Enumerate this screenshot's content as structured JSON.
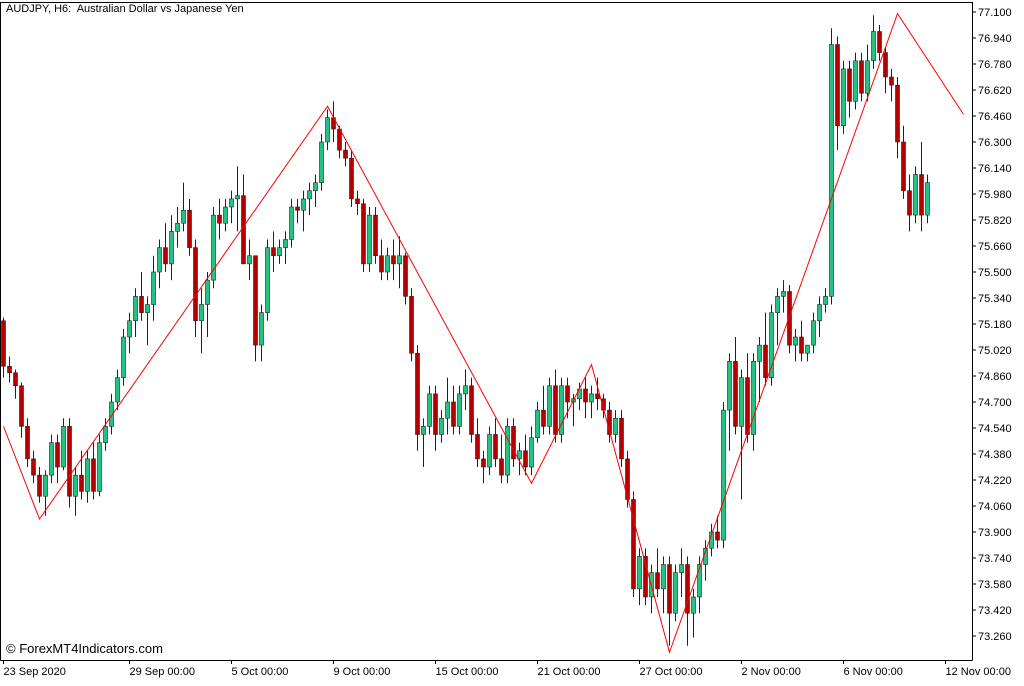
{
  "chart_title": "AUDJPY, H6:  Australian Dollar vs Japanese Yen",
  "watermark": "© ForexMT4Indicators.com",
  "colors": {
    "background": "#ffffff",
    "bull": "#26c281",
    "bear": "#b50000",
    "wick": "#222222",
    "zigzag": "#ff0000",
    "axis": "#000000"
  },
  "chart_data": {
    "type": "candlestick",
    "instrument": "AUDJPY",
    "timeframe": "H6",
    "y_tick_labels": [
      "77.100",
      "76.940",
      "76.780",
      "76.620",
      "76.460",
      "76.300",
      "76.140",
      "75.980",
      "75.820",
      "75.660",
      "75.500",
      "75.340",
      "75.180",
      "75.020",
      "74.860",
      "74.700",
      "74.540",
      "74.380",
      "74.220",
      "74.060",
      "73.900",
      "73.740",
      "73.580",
      "73.420",
      "73.260"
    ],
    "ylim": [
      73.12,
      77.18
    ],
    "x_tick_labels": [
      {
        "index": 0,
        "label": "23 Sep 2020"
      },
      {
        "index": 21,
        "label": "29 Sep 00:00"
      },
      {
        "index": 38,
        "label": "5 Oct 00:00"
      },
      {
        "index": 55,
        "label": "9 Oct 00:00"
      },
      {
        "index": 72,
        "label": "15 Oct 00:00"
      },
      {
        "index": 89,
        "label": "21 Oct 00:00"
      },
      {
        "index": 106,
        "label": "27 Oct 00:00"
      },
      {
        "index": 123,
        "label": "2 Nov 00:00"
      },
      {
        "index": 140,
        "label": "6 Nov 00:00"
      },
      {
        "index": 157,
        "label": "12 Nov 00:00"
      }
    ],
    "candles_ohlc": [
      [
        75.2,
        75.22,
        74.85,
        74.92
      ],
      [
        74.92,
        74.98,
        74.82,
        74.88
      ],
      [
        74.88,
        74.9,
        74.72,
        74.8
      ],
      [
        74.8,
        74.82,
        74.48,
        74.55
      ],
      [
        74.55,
        74.6,
        74.3,
        74.35
      ],
      [
        74.35,
        74.4,
        74.2,
        74.25
      ],
      [
        74.25,
        74.3,
        74.08,
        74.12
      ],
      [
        74.12,
        74.28,
        74.0,
        74.25
      ],
      [
        74.25,
        74.5,
        74.2,
        74.45
      ],
      [
        74.45,
        74.5,
        74.2,
        74.3
      ],
      [
        74.3,
        74.6,
        74.28,
        74.55
      ],
      [
        74.55,
        74.6,
        74.05,
        74.12
      ],
      [
        74.12,
        74.3,
        74.0,
        74.25
      ],
      [
        74.25,
        74.4,
        74.1,
        74.15
      ],
      [
        74.15,
        74.4,
        74.08,
        74.35
      ],
      [
        74.35,
        74.45,
        74.1,
        74.15
      ],
      [
        74.15,
        74.5,
        74.12,
        74.45
      ],
      [
        74.45,
        74.6,
        74.4,
        74.55
      ],
      [
        74.55,
        74.75,
        74.5,
        74.7
      ],
      [
        74.7,
        74.9,
        74.65,
        74.85
      ],
      [
        74.85,
        75.15,
        74.8,
        75.1
      ],
      [
        75.1,
        75.25,
        75.0,
        75.2
      ],
      [
        75.2,
        75.4,
        75.1,
        75.35
      ],
      [
        75.35,
        75.5,
        75.2,
        75.25
      ],
      [
        75.25,
        75.35,
        75.05,
        75.3
      ],
      [
        75.3,
        75.6,
        75.2,
        75.5
      ],
      [
        75.5,
        75.7,
        75.4,
        75.65
      ],
      [
        75.65,
        75.8,
        75.5,
        75.55
      ],
      [
        75.55,
        75.85,
        75.45,
        75.75
      ],
      [
        75.75,
        75.9,
        75.65,
        75.8
      ],
      [
        75.8,
        76.05,
        75.75,
        75.88
      ],
      [
        75.88,
        75.95,
        75.6,
        75.65
      ],
      [
        75.65,
        75.7,
        75.1,
        75.2
      ],
      [
        75.2,
        75.4,
        75.0,
        75.3
      ],
      [
        75.3,
        75.5,
        75.1,
        75.45
      ],
      [
        75.45,
        75.9,
        75.4,
        75.85
      ],
      [
        75.85,
        75.95,
        75.7,
        75.8
      ],
      [
        75.8,
        75.95,
        75.75,
        75.9
      ],
      [
        75.9,
        76.0,
        75.8,
        75.95
      ],
      [
        75.95,
        76.15,
        75.75,
        75.97
      ],
      [
        75.97,
        76.1,
        75.7,
        75.55
      ],
      [
        75.55,
        75.7,
        75.45,
        75.6
      ],
      [
        75.6,
        75.6,
        74.95,
        75.05
      ],
      [
        75.05,
        75.3,
        74.95,
        75.25
      ],
      [
        75.25,
        75.7,
        75.2,
        75.65
      ],
      [
        75.65,
        75.75,
        75.5,
        75.6
      ],
      [
        75.6,
        75.7,
        75.55,
        75.65
      ],
      [
        75.65,
        75.75,
        75.55,
        75.7
      ],
      [
        75.7,
        75.95,
        75.65,
        75.9
      ],
      [
        75.9,
        75.95,
        75.8,
        75.88
      ],
      [
        75.88,
        76.0,
        75.75,
        75.95
      ],
      [
        75.95,
        76.05,
        75.85,
        76.0
      ],
      [
        76.0,
        76.1,
        75.9,
        76.05
      ],
      [
        76.05,
        76.35,
        76.0,
        76.3
      ],
      [
        76.3,
        76.5,
        76.25,
        76.45
      ],
      [
        76.45,
        76.55,
        76.3,
        76.38
      ],
      [
        76.38,
        76.4,
        76.2,
        76.25
      ],
      [
        76.25,
        76.3,
        76.15,
        76.2
      ],
      [
        76.2,
        76.25,
        75.9,
        75.95
      ],
      [
        75.95,
        76.0,
        75.85,
        75.92
      ],
      [
        75.92,
        75.95,
        75.5,
        75.55
      ],
      [
        75.55,
        75.9,
        75.5,
        75.85
      ],
      [
        75.85,
        75.9,
        75.55,
        75.6
      ],
      [
        75.6,
        75.7,
        75.45,
        75.5
      ],
      [
        75.5,
        75.65,
        75.45,
        75.6
      ],
      [
        75.6,
        75.7,
        75.45,
        75.55
      ],
      [
        75.55,
        75.72,
        75.4,
        75.6
      ],
      [
        75.6,
        75.62,
        75.3,
        75.35
      ],
      [
        75.35,
        75.4,
        74.95,
        75.0
      ],
      [
        75.0,
        75.05,
        74.4,
        74.5
      ],
      [
        74.5,
        74.6,
        74.3,
        74.55
      ],
      [
        74.55,
        74.8,
        74.5,
        74.75
      ],
      [
        74.75,
        74.8,
        74.4,
        74.5
      ],
      [
        74.5,
        74.65,
        74.45,
        74.6
      ],
      [
        74.6,
        74.85,
        74.5,
        74.7
      ],
      [
        74.7,
        74.8,
        74.5,
        74.55
      ],
      [
        74.55,
        74.8,
        74.5,
        74.75
      ],
      [
        74.75,
        74.9,
        74.65,
        74.8
      ],
      [
        74.8,
        74.85,
        74.45,
        74.5
      ],
      [
        74.5,
        74.6,
        74.3,
        74.35
      ],
      [
        74.35,
        74.4,
        74.2,
        74.3
      ],
      [
        74.3,
        74.55,
        74.25,
        74.5
      ],
      [
        74.5,
        74.6,
        74.3,
        74.35
      ],
      [
        74.35,
        74.5,
        74.2,
        74.25
      ],
      [
        74.25,
        74.6,
        74.2,
        74.55
      ],
      [
        74.55,
        74.6,
        74.3,
        74.35
      ],
      [
        74.35,
        74.45,
        74.25,
        74.4
      ],
      [
        74.4,
        74.5,
        74.25,
        74.3
      ],
      [
        74.3,
        74.55,
        74.25,
        74.48
      ],
      [
        74.48,
        74.7,
        74.45,
        74.65
      ],
      [
        74.65,
        74.8,
        74.5,
        74.55
      ],
      [
        74.55,
        74.85,
        74.5,
        74.8
      ],
      [
        74.8,
        74.9,
        74.45,
        74.5
      ],
      [
        74.5,
        74.85,
        74.45,
        74.8
      ],
      [
        74.8,
        74.85,
        74.6,
        74.7
      ],
      [
        74.7,
        74.75,
        74.55,
        74.72
      ],
      [
        74.72,
        74.82,
        74.65,
        74.78
      ],
      [
        74.78,
        74.85,
        74.6,
        74.7
      ],
      [
        74.7,
        74.8,
        74.6,
        74.75
      ],
      [
        74.75,
        74.85,
        74.65,
        74.72
      ],
      [
        74.72,
        74.75,
        74.6,
        74.65
      ],
      [
        74.65,
        74.7,
        74.45,
        74.5
      ],
      [
        74.5,
        74.65,
        74.45,
        74.6
      ],
      [
        74.6,
        74.65,
        74.3,
        74.35
      ],
      [
        74.35,
        74.4,
        74.05,
        74.1
      ],
      [
        74.1,
        74.15,
        73.5,
        73.55
      ],
      [
        73.55,
        73.8,
        73.45,
        73.75
      ],
      [
        73.75,
        73.8,
        73.45,
        73.5
      ],
      [
        73.5,
        73.7,
        73.4,
        73.65
      ],
      [
        73.65,
        73.8,
        73.5,
        73.55
      ],
      [
        73.55,
        73.75,
        73.4,
        73.7
      ],
      [
        73.7,
        73.75,
        73.2,
        73.4
      ],
      [
        73.4,
        73.7,
        73.35,
        73.65
      ],
      [
        73.65,
        73.8,
        73.5,
        73.7
      ],
      [
        73.7,
        73.75,
        73.2,
        73.4
      ],
      [
        73.4,
        73.55,
        73.25,
        73.5
      ],
      [
        73.5,
        73.75,
        73.4,
        73.7
      ],
      [
        73.7,
        73.85,
        73.6,
        73.8
      ],
      [
        73.8,
        73.95,
        73.75,
        73.9
      ],
      [
        73.9,
        74.0,
        73.8,
        73.85
      ],
      [
        73.85,
        74.7,
        73.8,
        74.65
      ],
      [
        74.65,
        75.0,
        74.4,
        74.95
      ],
      [
        74.95,
        75.1,
        74.5,
        74.55
      ],
      [
        74.55,
        74.9,
        74.1,
        74.85
      ],
      [
        74.85,
        75.0,
        74.45,
        74.5
      ],
      [
        74.5,
        75.0,
        74.4,
        74.95
      ],
      [
        74.95,
        75.1,
        74.7,
        75.05
      ],
      [
        75.05,
        75.25,
        74.8,
        74.85
      ],
      [
        74.85,
        75.3,
        74.8,
        75.25
      ],
      [
        75.25,
        75.4,
        75.05,
        75.35
      ],
      [
        75.35,
        75.45,
        75.25,
        75.38
      ],
      [
        75.38,
        75.42,
        75.0,
        75.05
      ],
      [
        75.05,
        75.15,
        74.95,
        75.1
      ],
      [
        75.1,
        75.2,
        74.95,
        75.0
      ],
      [
        75.0,
        75.05,
        74.95,
        75.05
      ],
      [
        75.05,
        75.25,
        75.0,
        75.2
      ],
      [
        75.2,
        75.35,
        75.1,
        75.3
      ],
      [
        75.3,
        75.4,
        75.25,
        75.35
      ],
      [
        75.35,
        77.0,
        75.3,
        76.9
      ],
      [
        76.9,
        76.95,
        76.25,
        76.4
      ],
      [
        76.4,
        76.8,
        76.35,
        76.75
      ],
      [
        76.75,
        76.8,
        76.45,
        76.55
      ],
      [
        76.55,
        76.85,
        76.5,
        76.8
      ],
      [
        76.8,
        76.85,
        76.55,
        76.6
      ],
      [
        76.6,
        76.9,
        76.55,
        76.8
      ],
      [
        76.8,
        77.08,
        76.75,
        76.98
      ],
      [
        76.98,
        77.02,
        76.8,
        76.85
      ],
      [
        76.85,
        76.88,
        76.6,
        76.7
      ],
      [
        76.7,
        76.75,
        76.55,
        76.65
      ],
      [
        76.65,
        76.7,
        76.2,
        76.3
      ],
      [
        76.3,
        76.4,
        75.95,
        76.0
      ],
      [
        76.0,
        76.1,
        75.75,
        75.85
      ],
      [
        75.85,
        76.15,
        75.8,
        76.1
      ],
      [
        76.1,
        76.3,
        75.75,
        75.85
      ],
      [
        75.85,
        76.1,
        75.8,
        76.05
      ]
    ],
    "zigzag": [
      {
        "index": 0,
        "price": 74.55
      },
      {
        "index": 6,
        "price": 73.98
      },
      {
        "index": 54,
        "price": 76.52
      },
      {
        "index": 88,
        "price": 74.2
      },
      {
        "index": 98,
        "price": 74.93
      },
      {
        "index": 111,
        "price": 73.16
      },
      {
        "index": 149,
        "price": 77.09
      },
      {
        "index": 160,
        "price": 76.47
      }
    ]
  }
}
